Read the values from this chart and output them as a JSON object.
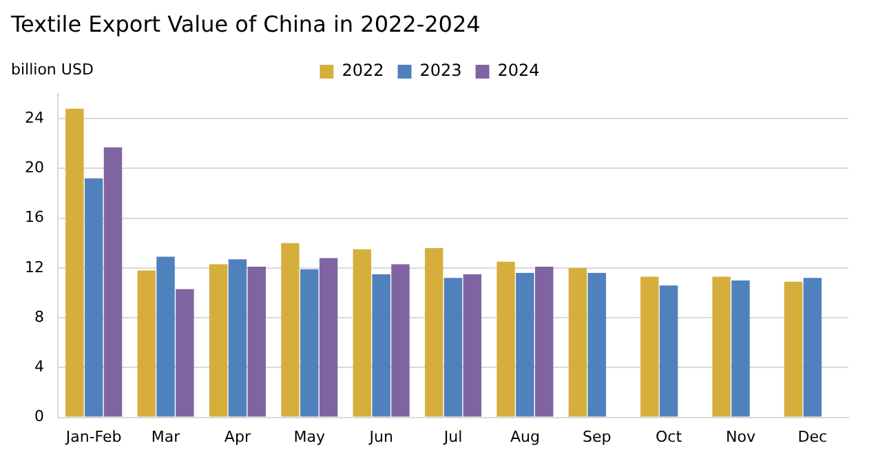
{
  "chart_data": {
    "type": "bar",
    "title": "Textile Export Value of China in 2022-2024",
    "ylabel": "billion USD",
    "categories": [
      "Jan-Feb",
      "Mar",
      "Apr",
      "May",
      "Jun",
      "Jul",
      "Aug",
      "Sep",
      "Oct",
      "Nov",
      "Dec"
    ],
    "series": [
      {
        "name": "2022",
        "color": "#d6ae3c",
        "values": [
          24.8,
          11.8,
          12.3,
          14.0,
          13.5,
          13.6,
          12.5,
          12.0,
          11.3,
          11.3,
          10.9
        ]
      },
      {
        "name": "2023",
        "color": "#4f81bd",
        "values": [
          19.2,
          12.9,
          12.7,
          11.9,
          11.5,
          11.2,
          11.6,
          11.6,
          10.6,
          11.0,
          11.2
        ]
      },
      {
        "name": "2024",
        "color": "#8064a2",
        "values": [
          21.7,
          10.3,
          12.1,
          12.8,
          12.3,
          11.5,
          12.1,
          null,
          null,
          null,
          null
        ]
      }
    ],
    "ylim": [
      0,
      26
    ],
    "yticks": [
      0,
      4,
      8,
      12,
      16,
      20,
      24
    ],
    "grid": "y",
    "legend": "top right"
  }
}
